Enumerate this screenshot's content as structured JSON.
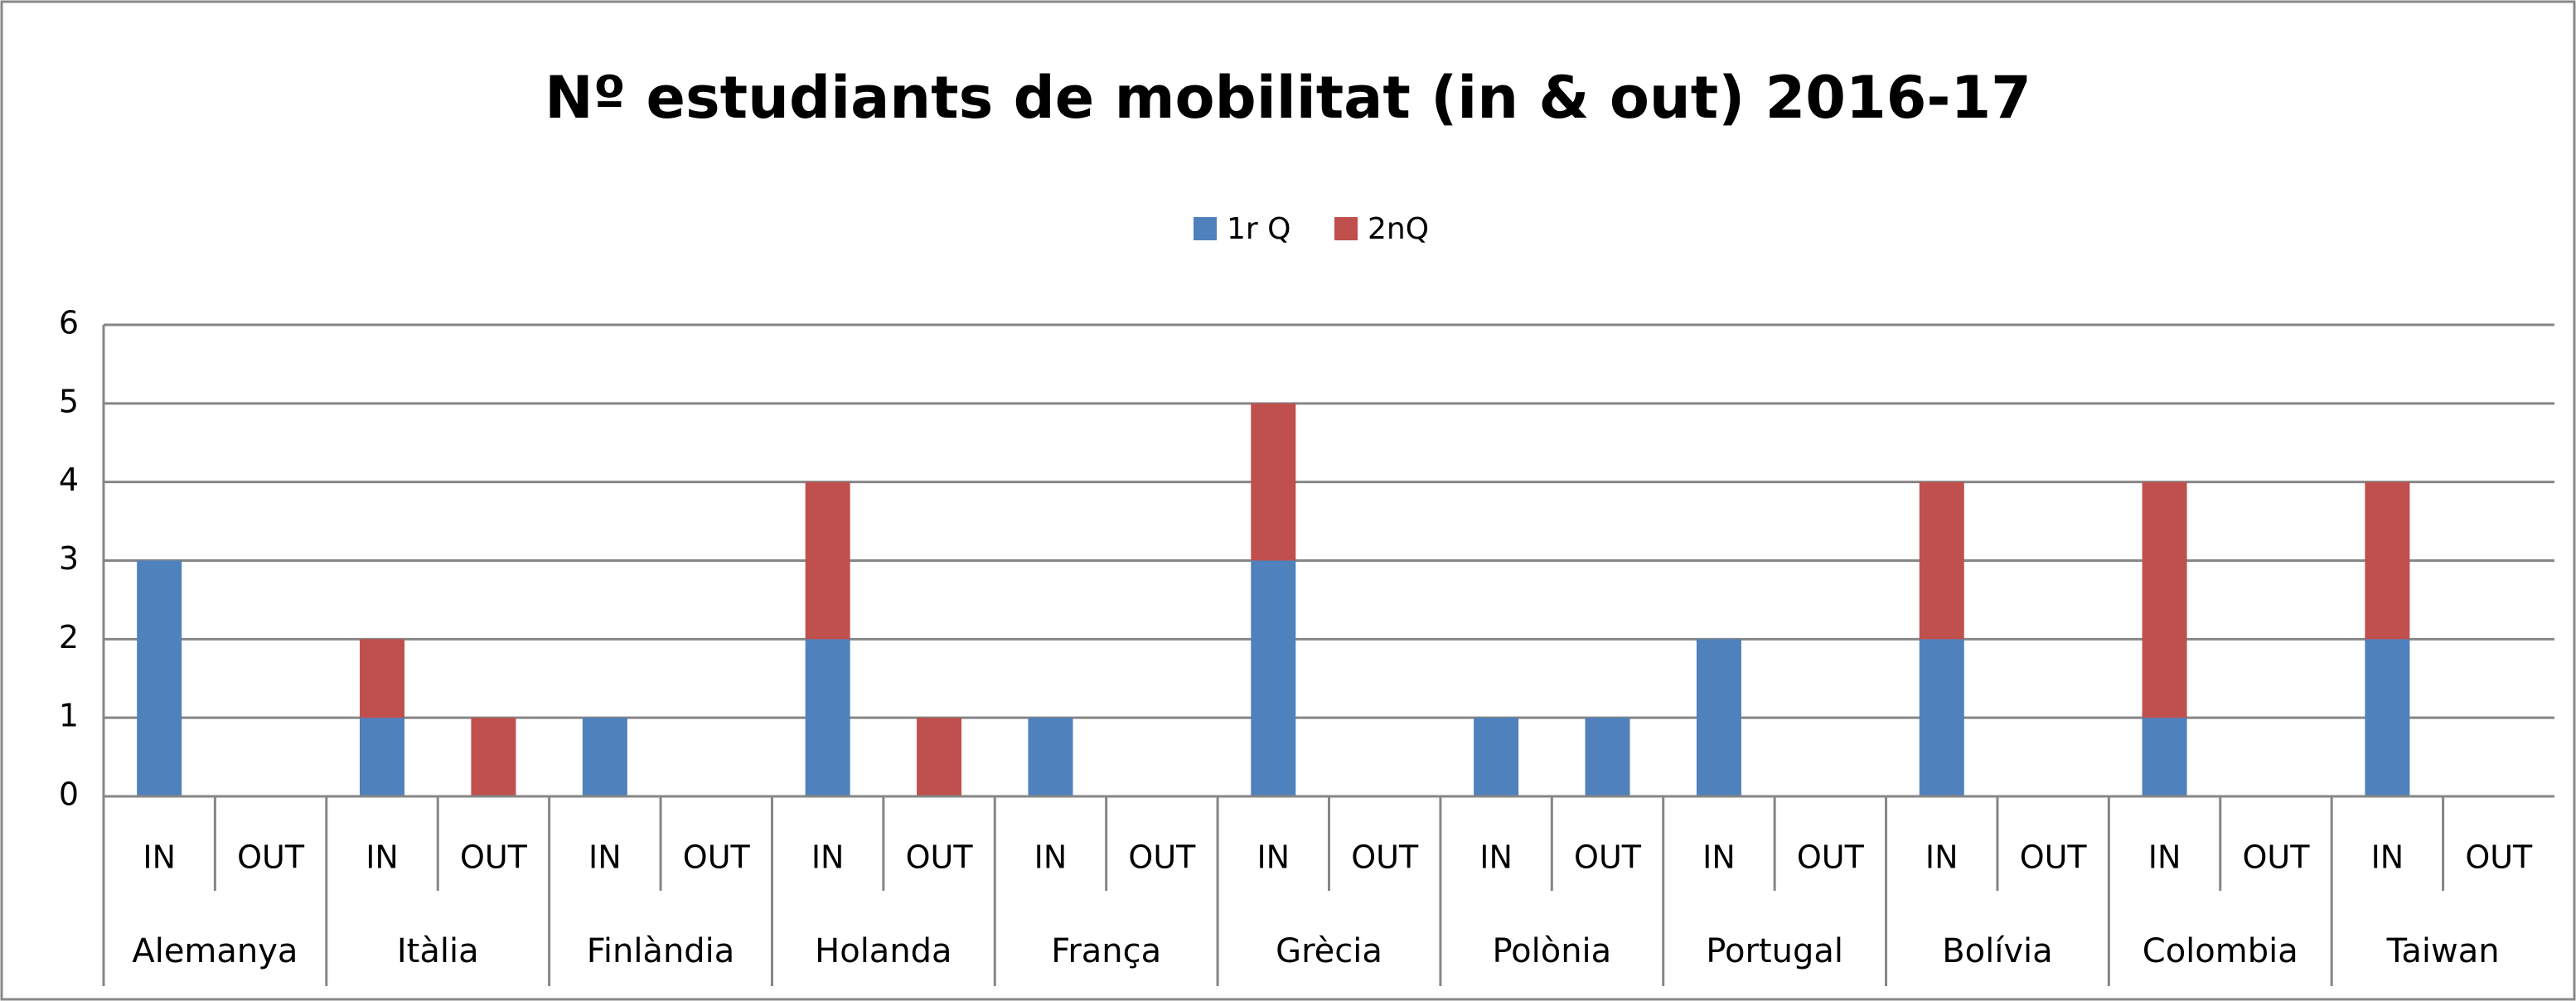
{
  "chart_data": {
    "type": "stacked_bar",
    "title": "Nº estudiants de mobilitat (in & out) 2016-17",
    "categories": [
      "IN",
      "OUT",
      "IN",
      "OUT",
      "IN",
      "OUT",
      "IN",
      "OUT",
      "IN",
      "OUT",
      "IN",
      "OUT",
      "IN",
      "OUT",
      "IN",
      "OUT",
      "IN",
      "OUT",
      "IN",
      "OUT",
      "IN",
      "OUT"
    ],
    "groups": [
      "Alemanya",
      "Itàlia",
      "Finlàndia",
      "Holanda",
      "França",
      "Grècia",
      "Polònia",
      "Portugal",
      "Bolívia",
      "Colombia",
      "Taiwan"
    ],
    "series": [
      {
        "name": "1r Q",
        "color": "#4f81bd",
        "values": [
          3,
          0,
          1,
          0,
          1,
          0,
          2,
          0,
          1,
          0,
          3,
          0,
          1,
          1,
          2,
          0,
          2,
          0,
          1,
          0,
          2,
          0
        ]
      },
      {
        "name": "2nQ",
        "color": "#c0504d",
        "values": [
          0,
          0,
          1,
          1,
          0,
          0,
          2,
          1,
          0,
          0,
          2,
          0,
          0,
          0,
          0,
          0,
          2,
          0,
          3,
          0,
          2,
          0
        ]
      }
    ],
    "ylim": [
      0,
      6
    ],
    "yticks": [
      0,
      1,
      2,
      3,
      4,
      5,
      6
    ],
    "grid": true,
    "legend": "top"
  }
}
